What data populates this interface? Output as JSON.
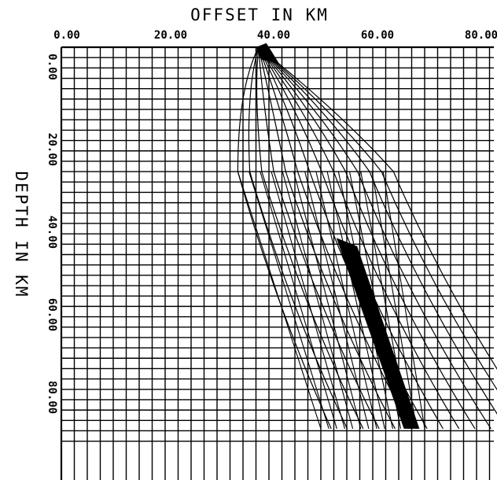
{
  "figure": {
    "x_axis_title": "OFFSET IN KM",
    "y_axis_title": "DEPTH IN KM",
    "x_tick_labels": [
      "0.00",
      "20.00",
      "40.00",
      "60.00",
      "80.00"
    ],
    "y_tick_labels": [
      "0.00",
      "20.00",
      "40.00",
      "60.00",
      "80.00"
    ],
    "ink_color": "#000000",
    "background_color": "#ffffff"
  },
  "chart_data": {
    "type": "ray-tracing plot with grid",
    "x_range_km": [
      0,
      92
    ],
    "y_range_km": [
      0,
      96
    ],
    "y_axis_direction": "down",
    "grid": true,
    "grid_spacing_km": 2.5,
    "source": {
      "offset_km": 38,
      "depth_km": 0
    },
    "receiver": {
      "offset_km": 67,
      "depth_km": 92
    },
    "interface_depth_km": 30,
    "ray_count": 14
  }
}
